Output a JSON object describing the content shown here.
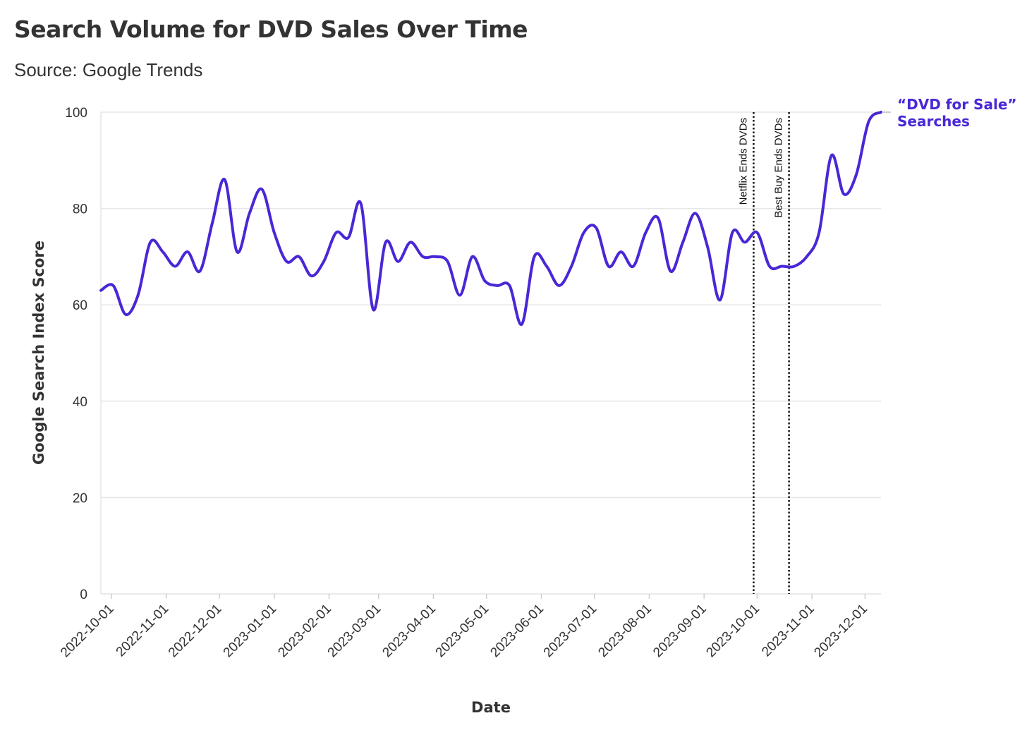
{
  "title": "Search Volume for DVD Sales Over Time",
  "subtitle": "Source: Google Trends",
  "chart_data": {
    "type": "line",
    "title": "Search Volume for DVD Sales Over Time",
    "subtitle": "Source: Google Trends",
    "xlabel": "Date",
    "ylabel": "Google Search Index Score",
    "xlim": [
      "2022-09-25",
      "2023-12-10"
    ],
    "ylim": [
      0,
      100
    ],
    "x_ticks": [
      "2022-10-01",
      "2022-11-01",
      "2022-12-01",
      "2023-01-01",
      "2023-02-01",
      "2023-03-01",
      "2023-04-01",
      "2023-05-01",
      "2023-06-01",
      "2023-07-01",
      "2023-08-01",
      "2023-09-01",
      "2023-10-01",
      "2023-11-01",
      "2023-12-01"
    ],
    "y_ticks": [
      0,
      20,
      40,
      60,
      80,
      100
    ],
    "grid": true,
    "series": [
      {
        "name": "“DVD for Sale” Searches",
        "label_lines": [
          "“DVD for Sale”",
          "Searches"
        ],
        "color": "#4a27d6",
        "x": [
          "2022-09-25",
          "2022-10-02",
          "2022-10-09",
          "2022-10-16",
          "2022-10-23",
          "2022-10-30",
          "2022-11-06",
          "2022-11-13",
          "2022-11-20",
          "2022-11-27",
          "2022-12-04",
          "2022-12-11",
          "2022-12-18",
          "2022-12-25",
          "2023-01-01",
          "2023-01-08",
          "2023-01-15",
          "2023-01-22",
          "2023-01-29",
          "2023-02-05",
          "2023-02-12",
          "2023-02-19",
          "2023-02-26",
          "2023-03-05",
          "2023-03-12",
          "2023-03-19",
          "2023-03-26",
          "2023-04-02",
          "2023-04-09",
          "2023-04-16",
          "2023-04-23",
          "2023-04-30",
          "2023-05-07",
          "2023-05-14",
          "2023-05-21",
          "2023-05-28",
          "2023-06-04",
          "2023-06-11",
          "2023-06-18",
          "2023-06-25",
          "2023-07-02",
          "2023-07-09",
          "2023-07-16",
          "2023-07-23",
          "2023-07-30",
          "2023-08-06",
          "2023-08-13",
          "2023-08-20",
          "2023-08-27",
          "2023-09-03",
          "2023-09-10",
          "2023-09-17",
          "2023-09-24",
          "2023-10-01",
          "2023-10-08",
          "2023-10-15",
          "2023-10-22",
          "2023-10-29",
          "2023-11-05",
          "2023-11-12",
          "2023-11-19",
          "2023-11-26",
          "2023-12-03",
          "2023-12-10"
        ],
        "values": [
          63,
          64,
          58,
          62,
          73,
          71,
          68,
          71,
          67,
          77,
          86,
          71,
          79,
          84,
          75,
          69,
          70,
          66,
          69,
          75,
          74,
          81,
          59,
          73,
          69,
          73,
          70,
          70,
          69,
          62,
          70,
          65,
          64,
          64,
          56,
          70,
          68,
          64,
          68,
          75,
          76,
          68,
          71,
          68,
          75,
          78,
          67,
          73,
          79,
          72,
          61,
          75,
          73,
          75,
          68,
          68,
          68,
          70,
          75,
          91,
          83,
          87,
          98,
          100
        ]
      }
    ],
    "annotations": [
      {
        "text": "Netflix Ends DVDs",
        "x": "2023-09-29",
        "style": "dotted-vertical-line"
      },
      {
        "text": "Best Buy Ends DVDs",
        "x": "2023-10-19",
        "style": "dotted-vertical-line"
      }
    ]
  }
}
